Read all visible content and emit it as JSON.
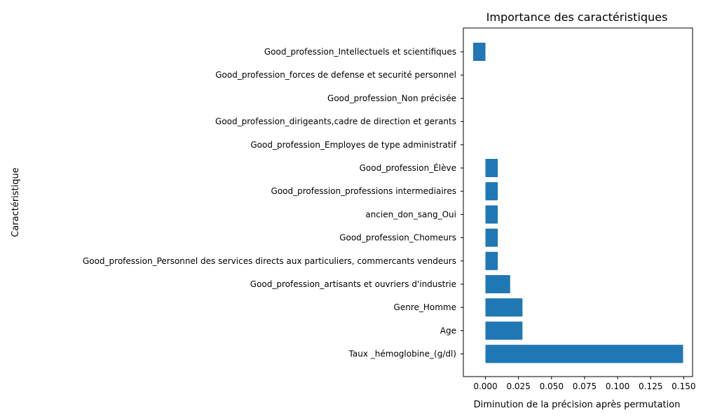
{
  "chart_data": {
    "type": "bar",
    "orientation": "horizontal",
    "title": "Importance des caractéristiques",
    "xlabel": "Diminution de la précision après permutation",
    "ylabel": "Caractéristique",
    "xlim": [
      -0.0167,
      0.1567
    ],
    "xticks": [
      0.0,
      0.025,
      0.05,
      0.075,
      0.1,
      0.125,
      0.15
    ],
    "xtick_labels": [
      "0.000",
      "0.025",
      "0.050",
      "0.075",
      "0.100",
      "0.125",
      "0.150"
    ],
    "grid": false,
    "bar_color": "#1f77b4",
    "categories": [
      "Good_profession_Intellectuels et scientifiques",
      "Good_profession_forces de defense et securité personnel",
      "Good_profession_Non précisée",
      "Good_profession_dirigeants,cadre de direction et gerants",
      "Good_profession_Employes de type administratif",
      "Good_profession_Élève",
      "Good_profession_professions intermediaires",
      "ancien_don_sang_Oui",
      "Good_profession_Chomeurs",
      "Good_profession_Personnel des services directs aux particuliers, commercants vendeurs",
      "Good_profession_artisants et ouvriers d'industrie",
      "Genre_Homme",
      "Age",
      "Taux _hémoglobine_(g/dl)"
    ],
    "values": [
      -0.0093,
      0.0,
      0.0,
      0.0,
      0.0,
      0.0093,
      0.0093,
      0.0093,
      0.0093,
      0.0093,
      0.0187,
      0.028,
      0.028,
      0.1495
    ]
  }
}
